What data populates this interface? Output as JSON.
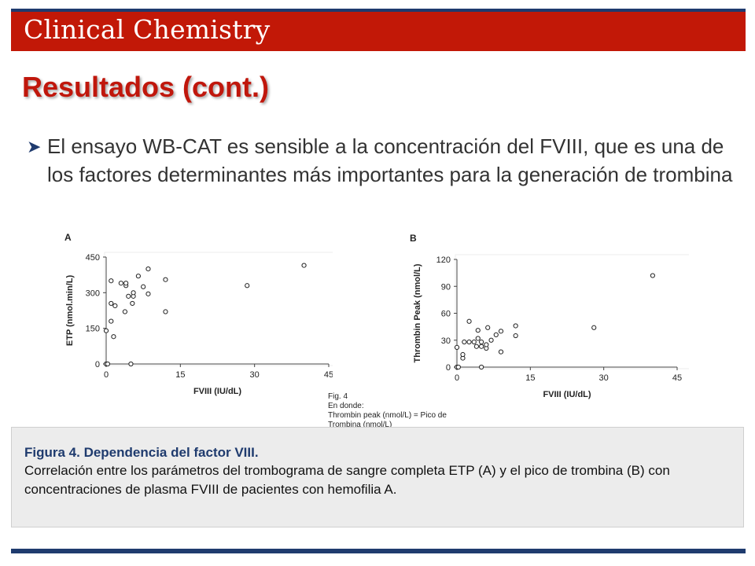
{
  "colors": {
    "header_red": "#c21807",
    "navy": "#1f3b6e",
    "title_red": "#c0170c"
  },
  "header": {
    "brand": "Clinical Chemistry"
  },
  "slide": {
    "title": "Resultados (cont.)",
    "bullet_icon": "arrow-bullet-icon",
    "bullet_text": "El ensayo WB-CAT es sensible a la concentración del FVIII, que es una de los factores determinantes más importantes para la generación de trombina"
  },
  "fig_note": {
    "line1": "Fig. 4",
    "line2": "En donde:",
    "line3": "Thrombin peak (nmol/L) = Pico de",
    "line4": "Trombina (nmol/L)"
  },
  "caption": {
    "title": "Figura 4. Dependencia del factor VIII.",
    "body": "Correlación entre los parámetros del trombograma de sangre completa ETP (A) y el pico de trombina (B) con concentraciones de plasma FVIII de pacientes con hemofilia A."
  },
  "chart_data": [
    {
      "type": "scatter",
      "panel_label": "A",
      "xlabel": "FVIII (IU/dL)",
      "ylabel": "ETP (nmol.min/L)",
      "xlim": [
        0,
        45
      ],
      "ylim": [
        0,
        450
      ],
      "xticks": [
        "0",
        "15",
        "30",
        "45"
      ],
      "yticks": [
        "0",
        "150",
        "300",
        "450"
      ],
      "grid": false,
      "points": [
        [
          0,
          0
        ],
        [
          0.3,
          0
        ],
        [
          5,
          0
        ],
        [
          0,
          140
        ],
        [
          1.5,
          115
        ],
        [
          1,
          180
        ],
        [
          1,
          255
        ],
        [
          1.8,
          245
        ],
        [
          1,
          350
        ],
        [
          3,
          340
        ],
        [
          4,
          330
        ],
        [
          4,
          340
        ],
        [
          3.8,
          220
        ],
        [
          4.5,
          285
        ],
        [
          5.5,
          285
        ],
        [
          5.5,
          300
        ],
        [
          5.3,
          255
        ],
        [
          6.5,
          370
        ],
        [
          7.5,
          325
        ],
        [
          8.5,
          295
        ],
        [
          8.5,
          400
        ],
        [
          12,
          355
        ],
        [
          12,
          220
        ],
        [
          28.5,
          330
        ],
        [
          40,
          415
        ]
      ]
    },
    {
      "type": "scatter",
      "panel_label": "B",
      "xlabel": "FVIII (IU/dL)",
      "ylabel": "Thrombin Peak (nmol/L)",
      "xlim": [
        0,
        45
      ],
      "ylim": [
        0,
        120
      ],
      "xticks": [
        "0",
        "15",
        "30",
        "45"
      ],
      "yticks": [
        "0",
        "30",
        "60",
        "90",
        "120"
      ],
      "grid": false,
      "points": [
        [
          0,
          0
        ],
        [
          0.3,
          0
        ],
        [
          5,
          0
        ],
        [
          0,
          22
        ],
        [
          1.2,
          10
        ],
        [
          1.2,
          14
        ],
        [
          1.5,
          28
        ],
        [
          2.5,
          28
        ],
        [
          2.5,
          51
        ],
        [
          3.5,
          28
        ],
        [
          4,
          23
        ],
        [
          4.3,
          32
        ],
        [
          4.3,
          41
        ],
        [
          5,
          28
        ],
        [
          5,
          23
        ],
        [
          6,
          21
        ],
        [
          6,
          25
        ],
        [
          6.3,
          44
        ],
        [
          7,
          30
        ],
        [
          8,
          36
        ],
        [
          9,
          40
        ],
        [
          9,
          17
        ],
        [
          12,
          46
        ],
        [
          12,
          35
        ],
        [
          28,
          44
        ],
        [
          40,
          102
        ]
      ]
    }
  ]
}
